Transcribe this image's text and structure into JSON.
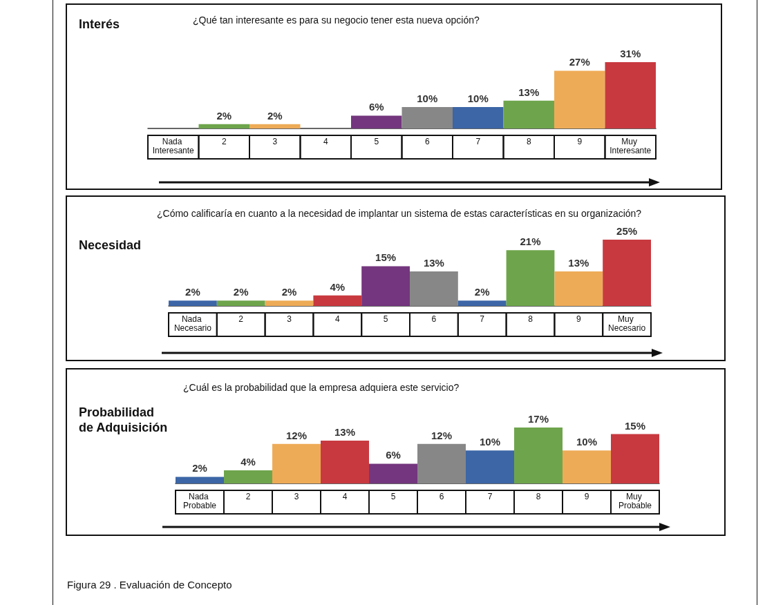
{
  "chart_data": [
    {
      "type": "bar",
      "title": "Interés",
      "subtitle": "¿Qué tan interesante es para su negocio tener esta nueva opción?",
      "categories": [
        "Nada Interesante",
        "2",
        "3",
        "4",
        "5",
        "6",
        "7",
        "8",
        "9",
        "Muy Interesante"
      ],
      "values": [
        null,
        2,
        2,
        null,
        6,
        10,
        10,
        13,
        27,
        31
      ],
      "colors": [
        null,
        "#6ea54c",
        "#eeab57",
        null,
        "#74367e",
        "#878787",
        "#3c66a6",
        "#6ea54c",
        "#eeab57",
        "#c8393f"
      ],
      "value_labels": [
        null,
        "2%",
        "2%",
        null,
        "6%",
        "10%",
        "10%",
        "13%",
        "27%",
        "31%"
      ]
    },
    {
      "type": "bar",
      "title": "Necesidad",
      "subtitle": "¿Cómo calificaría en cuanto a la necesidad de implantar un sistema de estas características en su organización?",
      "categories": [
        "Nada Necesario",
        "2",
        "3",
        "4",
        "5",
        "6",
        "7",
        "8",
        "9",
        "Muy Necesario"
      ],
      "values": [
        2,
        2,
        2,
        4,
        15,
        13,
        2,
        21,
        13,
        25
      ],
      "colors": [
        "#3c66a6",
        "#6ea54c",
        "#eeab57",
        "#c8393f",
        "#74367e",
        "#878787",
        "#3c66a6",
        "#6ea54c",
        "#eeab57",
        "#c8393f"
      ],
      "value_labels": [
        "2%",
        "2%",
        "2%",
        "4%",
        "15%",
        "13%",
        "2%",
        "21%",
        "13%",
        "25%"
      ]
    },
    {
      "type": "bar",
      "title": "Probabilidad de Adquisición",
      "subtitle": "¿Cuál es la probabilidad que la empresa adquiera este servicio?",
      "categories": [
        "Nada Probable",
        "2",
        "3",
        "4",
        "5",
        "6",
        "7",
        "8",
        "9",
        "Muy Probable"
      ],
      "values": [
        2,
        4,
        12,
        13,
        6,
        12,
        10,
        17,
        10,
        15
      ],
      "colors": [
        "#3c66a6",
        "#6ea54c",
        "#eeab57",
        "#c8393f",
        "#74367e",
        "#878787",
        "#3c66a6",
        "#6ea54c",
        "#eeab57",
        "#c8393f"
      ],
      "value_labels": [
        "2%",
        "4%",
        "12%",
        "13%",
        "6%",
        "12%",
        "10%",
        "17%",
        "10%",
        "15%"
      ],
      "annotations": [
        "Figura 29 . Evaluación de Concepto"
      ]
    }
  ]
}
